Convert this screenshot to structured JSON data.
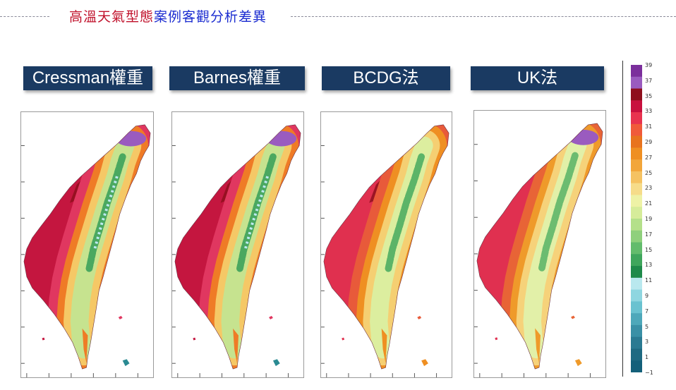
{
  "header": {
    "title_part1": "高溫天氣型態",
    "title_part2": "案例客觀分析差異"
  },
  "methods": [
    "Cressman權重",
    "Barnes權重",
    "BCDG法",
    "UK法"
  ],
  "colorbar": {
    "labels": [
      "39",
      "37",
      "35",
      "33",
      "31",
      "29",
      "27",
      "25",
      "23",
      "21",
      "19",
      "17",
      "15",
      "13",
      "11",
      "9",
      "7",
      "5",
      "3",
      "1",
      "−1"
    ],
    "colors": [
      "#7b2f9c",
      "#9a5bbf",
      "#8e0f1c",
      "#c8103e",
      "#e8334f",
      "#f05a3a",
      "#e8731e",
      "#ef8f22",
      "#f2a63a",
      "#f5c262",
      "#f6dc8a",
      "#eef2a6",
      "#d6ec9a",
      "#b4e08a",
      "#8fd07c",
      "#63bc6c",
      "#3fa65c",
      "#1f8a4a",
      "#b9e8ee",
      "#8ed6e0",
      "#6ac2d0",
      "#4ea8ba",
      "#3a90a6",
      "#2a7a92",
      "#1e6a82",
      "#14607a"
    ]
  },
  "chart_data": [
    {
      "type": "heatmap",
      "title": "Cressman權重",
      "variable": "temperature",
      "colorbar_ticks": [
        39,
        37,
        35,
        33,
        31,
        29,
        27,
        25,
        23,
        21,
        19,
        17,
        15,
        13,
        11,
        9,
        7,
        5,
        3,
        1,
        -1
      ]
    },
    {
      "type": "heatmap",
      "title": "Barnes權重",
      "variable": "temperature",
      "colorbar_ticks": [
        39,
        37,
        35,
        33,
        31,
        29,
        27,
        25,
        23,
        21,
        19,
        17,
        15,
        13,
        11,
        9,
        7,
        5,
        3,
        1,
        -1
      ]
    },
    {
      "type": "heatmap",
      "title": "BCDG法",
      "variable": "temperature",
      "colorbar_ticks": [
        39,
        37,
        35,
        33,
        31,
        29,
        27,
        25,
        23,
        21,
        19,
        17,
        15,
        13,
        11,
        9,
        7,
        5,
        3,
        1,
        -1
      ]
    },
    {
      "type": "heatmap",
      "title": "UK法",
      "variable": "temperature",
      "colorbar_ticks": [
        39,
        37,
        35,
        33,
        31,
        29,
        27,
        25,
        23,
        21,
        19,
        17,
        15,
        13,
        11,
        9,
        7,
        5,
        3,
        1,
        -1
      ]
    }
  ]
}
